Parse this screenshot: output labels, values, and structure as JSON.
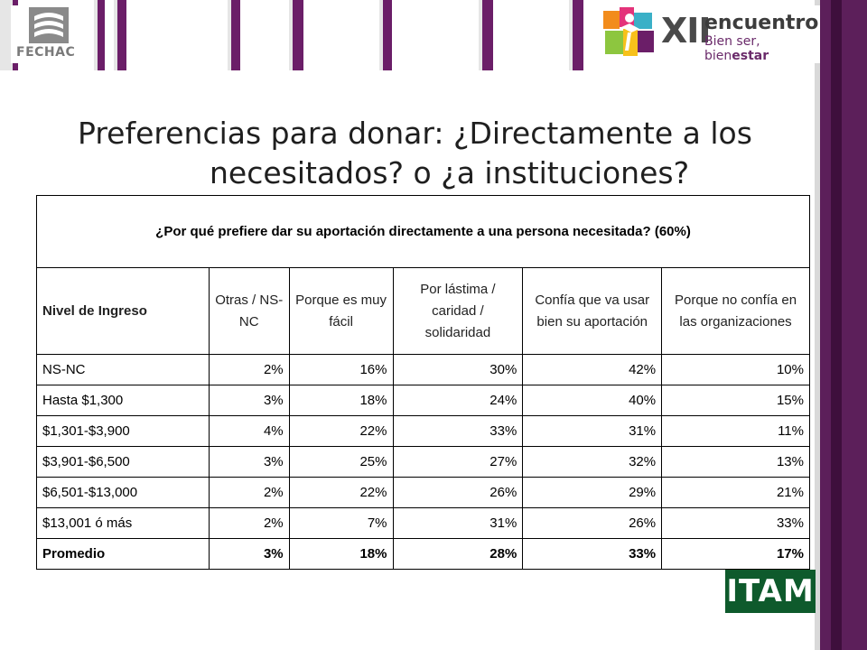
{
  "header": {
    "left_logo_text": "FECHAC",
    "right_logo_xii": "XII",
    "right_logo_word": "encuentro",
    "right_logo_sub_plain": "Bien ser, bien",
    "right_logo_sub_bold": "estar",
    "stripe_colors": [
      "#e6e6e6",
      "#6b1e68",
      "#e6e6e6",
      "#6b1e68",
      "#e6e6e6",
      "#6b1e68",
      "#e6e6e6",
      "#6b1e68",
      "#e6e6e6",
      "#6b1e68",
      "#e6e6e6",
      "#6b1e68",
      "#e6e6e6",
      "#6b1e68"
    ]
  },
  "title": {
    "line1": "Preferencias para donar: ¿Directamente a los",
    "line2": "necesitados? o ¿a instituciones?"
  },
  "table": {
    "question": "¿Por qué prefiere dar su aportación directamente a una persona necesitada? (60%)",
    "headers": [
      "Nivel de Ingreso",
      "Otras / NS-NC",
      "Porque es muy fácil",
      "Por lástima / caridad / solidaridad",
      "Confía que va usar bien su aportación",
      "Porque no confía en las organizaciones"
    ],
    "rows": [
      [
        "NS-NC",
        "2%",
        "16%",
        "30%",
        "42%",
        "10%"
      ],
      [
        "Hasta $1,300",
        "3%",
        "18%",
        "24%",
        "40%",
        "15%"
      ],
      [
        "$1,301-$3,900",
        "4%",
        "22%",
        "33%",
        "31%",
        "11%"
      ],
      [
        "$3,901-$6,500",
        "3%",
        "25%",
        "27%",
        "32%",
        "13%"
      ],
      [
        "$6,501-$13,000",
        "2%",
        "22%",
        "26%",
        "29%",
        "21%"
      ],
      [
        "$13,001 ó más",
        "2%",
        "7%",
        "31%",
        "26%",
        "33%"
      ],
      [
        "Promedio",
        "3%",
        "18%",
        "28%",
        "33%",
        "17%"
      ]
    ]
  },
  "footer": {
    "itam_logo_text": "ITAM"
  },
  "colors": {
    "purple": "#6b1e68",
    "itam_green": "#0e5a2c"
  }
}
